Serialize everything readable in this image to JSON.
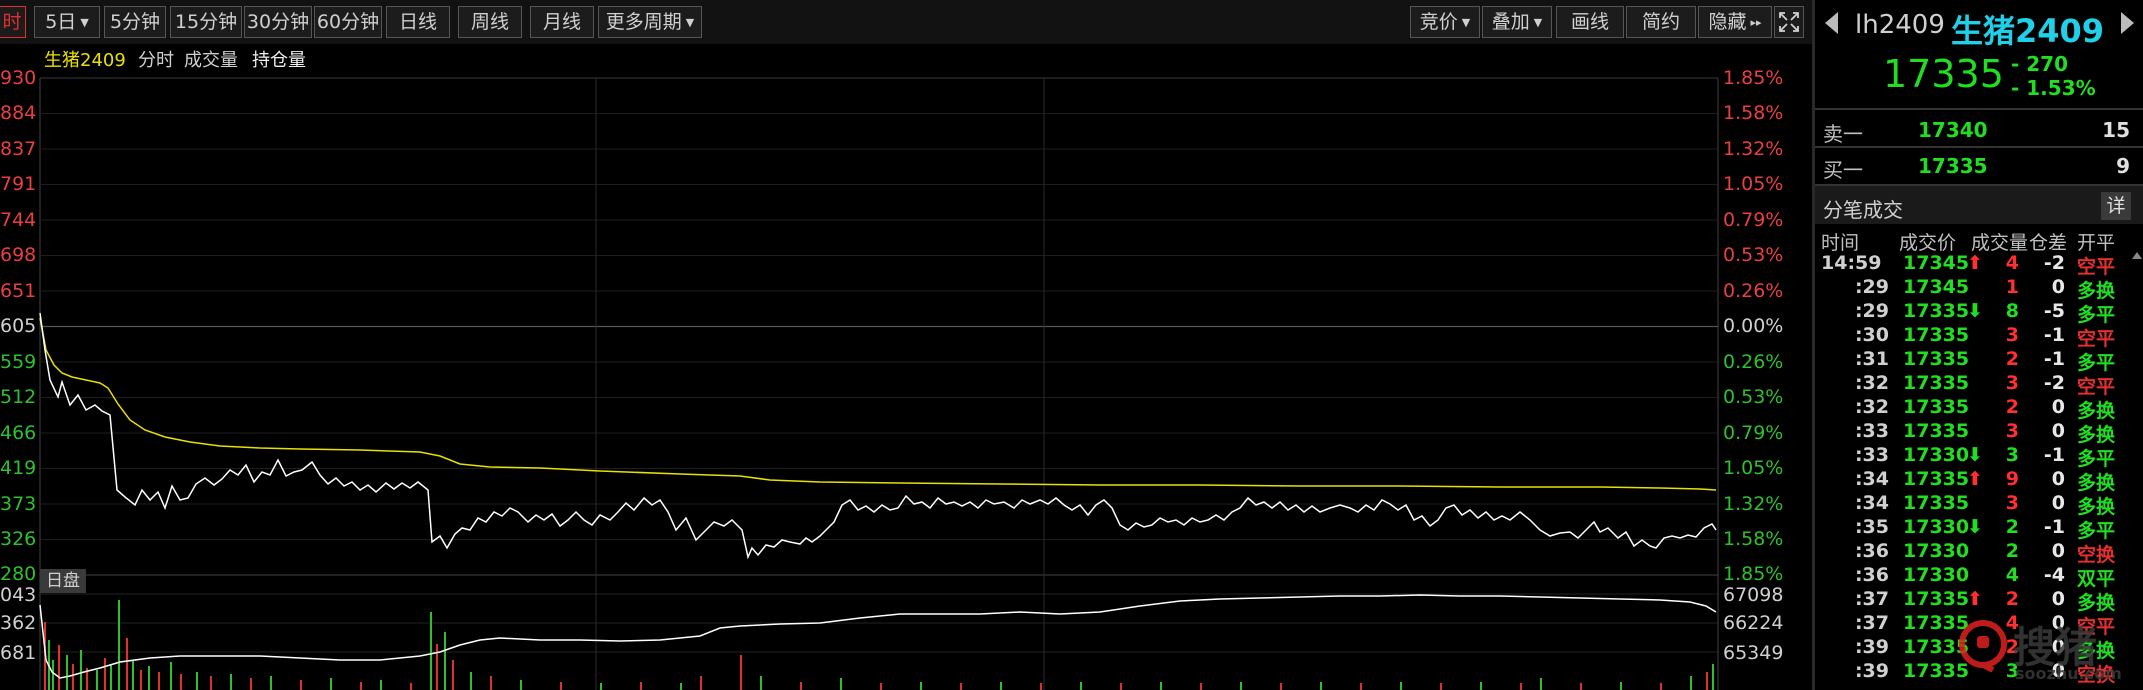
{
  "toolbar": {
    "period_tabs": [
      "时",
      "5日",
      "5分钟",
      "15分钟",
      "30分钟",
      "60分钟",
      "日线",
      "周线",
      "月线",
      "更多周期"
    ],
    "right_buttons": [
      "竞价",
      "叠加",
      "画线",
      "简约",
      "隐藏"
    ]
  },
  "legend": {
    "name": "生猪2409",
    "items": [
      "分时",
      "成交量",
      "持仓量"
    ]
  },
  "price_axis": {
    "left": [
      "930",
      "884",
      "837",
      "791",
      "744",
      "698",
      "651",
      "605",
      "559",
      "512",
      "466",
      "419",
      "373",
      "326",
      "280"
    ],
    "right": [
      "1.85%",
      "1.58%",
      "1.32%",
      "1.05%",
      "0.79%",
      "0.53%",
      "0.26%",
      "0.00%",
      "0.26%",
      "0.53%",
      "0.79%",
      "1.05%",
      "1.32%",
      "1.58%",
      "1.85%"
    ]
  },
  "lower_panel": {
    "label": "日盘",
    "left": [
      "043",
      "362",
      "681"
    ],
    "right": [
      "67098",
      "66224",
      "65349"
    ]
  },
  "quote": {
    "code": "lh2409",
    "name": "生猪2409",
    "price": "17335",
    "change": "- 270",
    "pct": "- 1.53%"
  },
  "orderbook": [
    {
      "label": "卖一",
      "price": "17340",
      "vol": "15"
    },
    {
      "label": "买一",
      "price": "17335",
      "vol": "9"
    }
  ],
  "ticks_section": {
    "title": "分笔成交",
    "detail_button": "详",
    "headers": [
      "时间",
      "成交价",
      "成交量",
      "仓差",
      "开平"
    ]
  },
  "ticks": [
    {
      "time": "14:59",
      "price": "17345",
      "arrow": "up",
      "vol": "4",
      "oi": "-2",
      "type": "空平"
    },
    {
      "time": ":29",
      "price": "17345",
      "arrow": "",
      "vol": "1",
      "oi": "0",
      "type": "多换"
    },
    {
      "time": ":29",
      "price": "17335",
      "arrow": "down",
      "vol": "8",
      "oi": "-5",
      "type": "多平"
    },
    {
      "time": ":30",
      "price": "17335",
      "arrow": "",
      "vol": "3",
      "oi": "-1",
      "type": "空平"
    },
    {
      "time": ":31",
      "price": "17335",
      "arrow": "",
      "vol": "2",
      "oi": "-1",
      "type": "多平"
    },
    {
      "time": ":32",
      "price": "17335",
      "arrow": "",
      "vol": "3",
      "oi": "-2",
      "type": "空平"
    },
    {
      "time": ":32",
      "price": "17335",
      "arrow": "",
      "vol": "2",
      "oi": "0",
      "type": "多换"
    },
    {
      "time": ":33",
      "price": "17335",
      "arrow": "",
      "vol": "3",
      "oi": "0",
      "type": "多换"
    },
    {
      "time": ":33",
      "price": "17330",
      "arrow": "down",
      "vol": "3",
      "oi": "-1",
      "type": "多平"
    },
    {
      "time": ":34",
      "price": "17335",
      "arrow": "up",
      "vol": "9",
      "oi": "0",
      "type": "多换"
    },
    {
      "time": ":34",
      "price": "17335",
      "arrow": "",
      "vol": "3",
      "oi": "0",
      "type": "多换"
    },
    {
      "time": ":35",
      "price": "17330",
      "arrow": "down",
      "vol": "2",
      "oi": "-1",
      "type": "多平"
    },
    {
      "time": ":36",
      "price": "17330",
      "arrow": "",
      "vol": "2",
      "oi": "0",
      "type": "空换"
    },
    {
      "time": ":36",
      "price": "17330",
      "arrow": "",
      "vol": "4",
      "oi": "-4",
      "type": "双平"
    },
    {
      "time": ":37",
      "price": "17335",
      "arrow": "up",
      "vol": "2",
      "oi": "0",
      "type": "多换"
    },
    {
      "time": ":37",
      "price": "17335",
      "arrow": "",
      "vol": "4",
      "oi": "0",
      "type": "空平"
    },
    {
      "time": ":39",
      "price": "17335",
      "arrow": "",
      "vol": "2",
      "oi": "0",
      "type": "多换"
    },
    {
      "time": ":39",
      "price": "17335",
      "arrow": "",
      "vol": "3",
      "oi": "0",
      "type": "空换"
    }
  ],
  "watermark": {
    "name": "搜猪",
    "url": "soozhu.com"
  }
}
